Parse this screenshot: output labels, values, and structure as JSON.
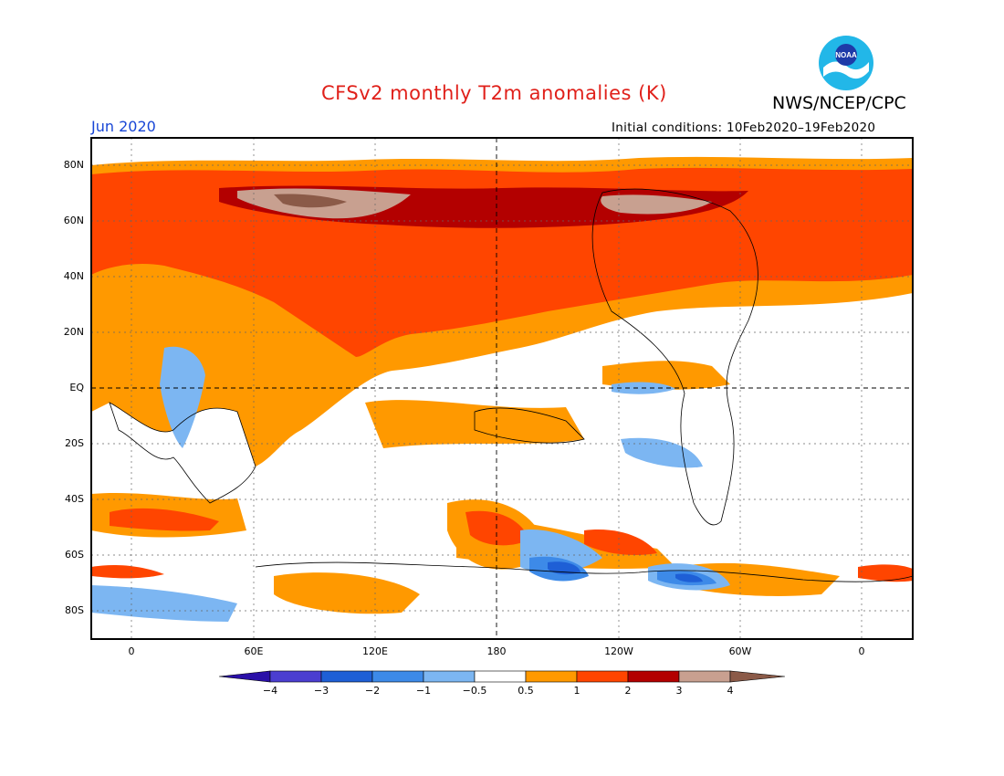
{
  "header": {
    "title": "CFSv2 monthly T2m anomalies (K)",
    "period": "Jun 2020",
    "agency": "NWS/NCEP/CPC",
    "initial_conditions": "Initial conditions: 10Feb2020–19Feb2020",
    "logo_text": "NOAA"
  },
  "colors": {
    "title": "#e0201a",
    "period": "#1846d6",
    "logo_ring": "#22b7e8",
    "logo_center": "#1e3aa8"
  },
  "map": {
    "lat_ticks": [
      "80N",
      "60N",
      "40N",
      "20N",
      "EQ",
      "20S",
      "40S",
      "60S",
      "80S"
    ],
    "lon_ticks": [
      "0",
      "60E",
      "120E",
      "180",
      "120W",
      "60W",
      "0"
    ]
  },
  "colorbar": {
    "labels": [
      "−4",
      "−3",
      "−2",
      "−1",
      "−0.5",
      "0.5",
      "1",
      "2",
      "3",
      "4"
    ],
    "colors": [
      "#2a10a8",
      "#4b3ed0",
      "#1e5fd6",
      "#3d8ae8",
      "#7cb6f2",
      "#ffffff",
      "#ff9900",
      "#ff4500",
      "#b30000",
      "#c8a090",
      "#8b5a48"
    ]
  }
}
